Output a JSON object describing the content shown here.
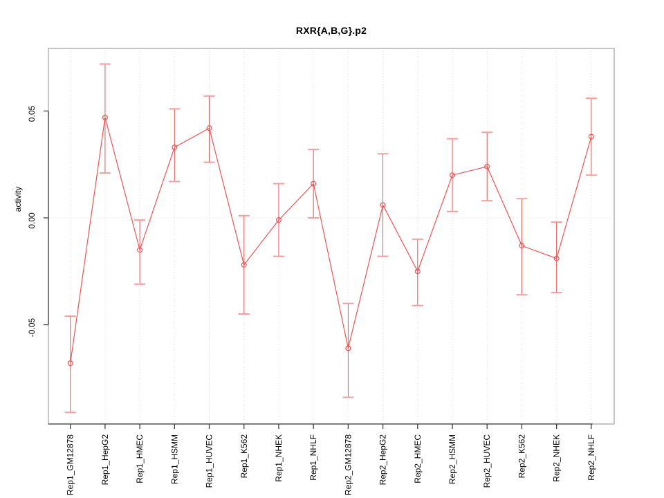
{
  "title": "RXR{A,B,G}.p2",
  "colors": {
    "series": "#EF5252",
    "error_cap": "#F79C9C",
    "frame": "#A8A8A8",
    "axis": "#3F3F3F",
    "grid": "#DCDCDC",
    "text": "#000000",
    "background": "#FFFFFF"
  },
  "chart_data": {
    "type": "line",
    "title": "RXR{A,B,G}.p2",
    "xlabel": "",
    "ylabel": "activity",
    "ylim": [
      -0.096,
      0.079
    ],
    "yticks": [
      -0.05,
      0.0,
      0.05
    ],
    "ytick_labels": [
      "-0.05",
      "0.00",
      "0.05"
    ],
    "grid": "dotted vertical line at every category; dotted horizontal line at y=0",
    "legend": "none",
    "point_marker": "open-circle",
    "categories": [
      "Rep1_GM12878",
      "Rep1_HepG2",
      "Rep1_HMEC",
      "Rep1_HSMM",
      "Rep1_HUVEC",
      "Rep1_K562",
      "Rep1_NHEK",
      "Rep1_NHLF",
      "Rep2_GM12878",
      "Rep2_HepG2",
      "Rep2_HMEC",
      "Rep2_HSMM",
      "Rep2_HUVEC",
      "Rep2_K562",
      "Rep2_NHEK",
      "Rep2_NHLF"
    ],
    "series": [
      {
        "name": "activity",
        "values": [
          -0.068,
          0.047,
          -0.015,
          0.033,
          0.042,
          -0.022,
          -0.001,
          0.016,
          -0.061,
          0.006,
          -0.025,
          0.02,
          0.024,
          -0.013,
          -0.019,
          0.038
        ],
        "err_high": [
          -0.046,
          0.072,
          -0.001,
          0.051,
          0.057,
          0.001,
          0.016,
          0.032,
          -0.04,
          0.03,
          -0.01,
          0.037,
          0.04,
          0.009,
          -0.002,
          0.056
        ],
        "err_low": [
          -0.091,
          0.021,
          -0.031,
          0.017,
          0.026,
          -0.045,
          -0.018,
          0.0,
          -0.084,
          -0.018,
          -0.041,
          0.003,
          0.008,
          -0.036,
          -0.035,
          0.02
        ]
      }
    ]
  }
}
